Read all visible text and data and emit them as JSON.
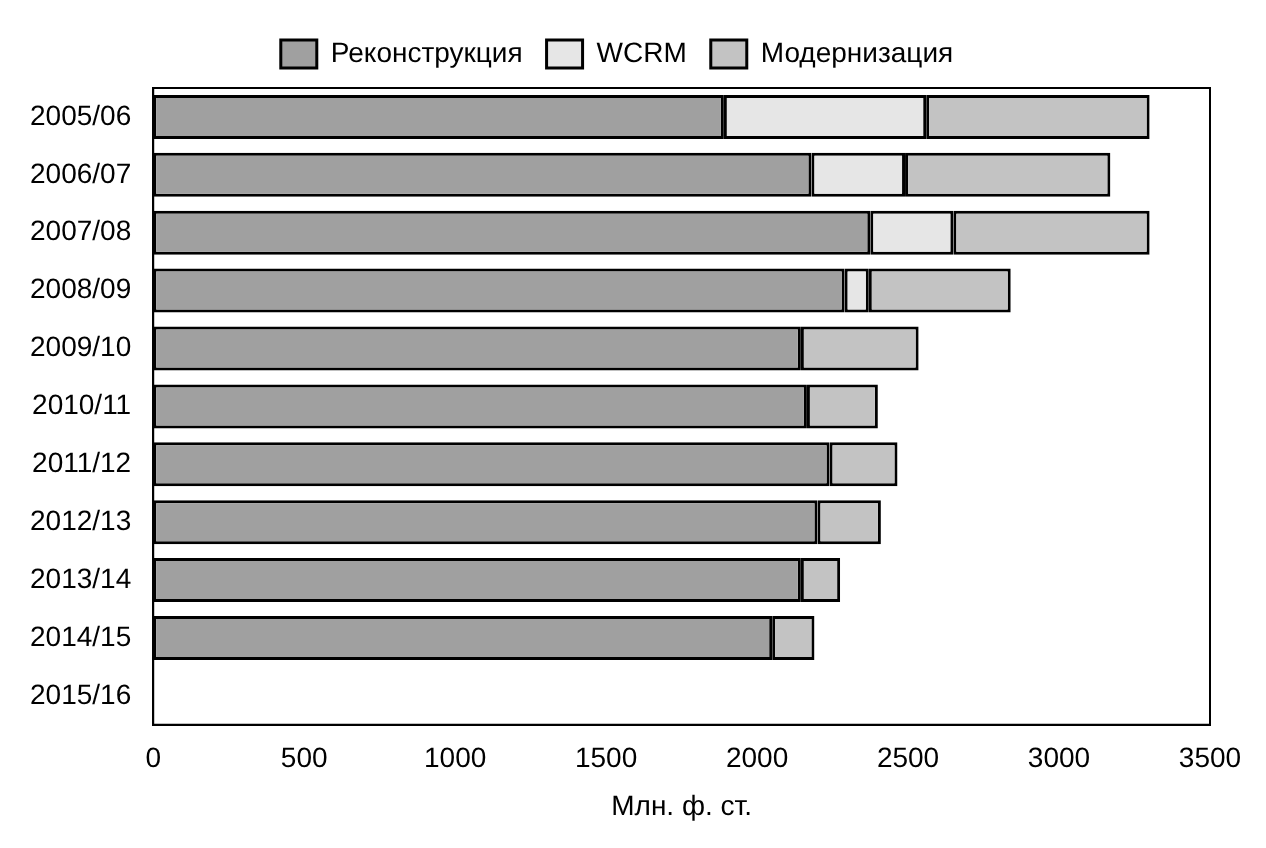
{
  "chart_data": {
    "type": "bar",
    "orientation": "horizontal",
    "stacked": true,
    "categories": [
      "2005/06",
      "2006/07",
      "2007/08",
      "2008/09",
      "2009/10",
      "2010/11",
      "2011/12",
      "2012/13",
      "2013/14",
      "2014/15",
      "2015/16"
    ],
    "series": [
      {
        "name": "Реконструкция",
        "color": "#a0a0a0",
        "values": [
          1890,
          2180,
          2375,
          2290,
          2145,
          2165,
          2240,
          2200,
          2145,
          2050,
          null
        ]
      },
      {
        "name": "WCRM",
        "color": "#e6e6e6",
        "values": [
          670,
          310,
          275,
          80,
          null,
          null,
          null,
          null,
          null,
          null,
          null
        ]
      },
      {
        "name": "Модернизация",
        "color": "#c3c3c3",
        "values": [
          740,
          680,
          650,
          470,
          390,
          235,
          225,
          210,
          130,
          140,
          null
        ]
      }
    ],
    "xlabel": "Млн. ф. ст.",
    "xlim": [
      0,
      3500
    ],
    "xticks": [
      0,
      500,
      1000,
      1500,
      2000,
      2500,
      3000,
      3500
    ],
    "grid": false,
    "legend": "top"
  }
}
